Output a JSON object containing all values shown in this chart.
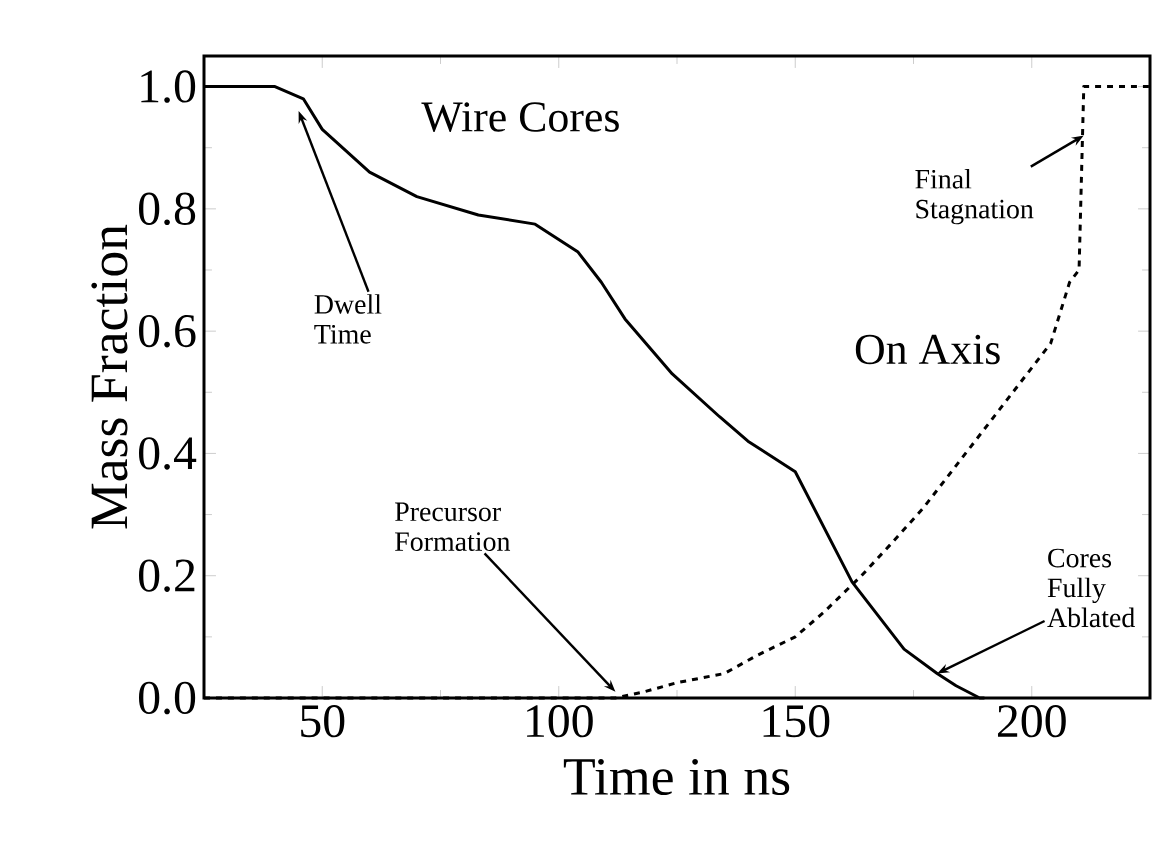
{
  "chart_data": {
    "type": "line",
    "xlabel": "Time in ns",
    "ylabel": "Mass Fraction",
    "xlim": [
      25,
      225
    ],
    "ylim": [
      0,
      1.05
    ],
    "xticks": [
      50,
      100,
      150,
      200
    ],
    "yticks": [
      {
        "value": 0,
        "label": "0.0"
      },
      0.2,
      0.4,
      0.6,
      0.8,
      {
        "value": 1,
        "label": "1.0"
      }
    ],
    "grid": false,
    "legend": false,
    "marker": "none",
    "series": [
      {
        "name": "Wire Cores",
        "color": "#000000",
        "line_style": "solid",
        "x": [
          25,
          40,
          46,
          50,
          60,
          70,
          83,
          95,
          104,
          109,
          114,
          124,
          134,
          140,
          150,
          162,
          173,
          180,
          184,
          189,
          190
        ],
        "values": [
          1.0,
          1.0,
          0.98,
          0.93,
          0.86,
          0.82,
          0.79,
          0.775,
          0.73,
          0.68,
          0.62,
          0.53,
          0.46,
          0.42,
          0.37,
          0.19,
          0.08,
          0.04,
          0.02,
          0.0,
          0.0
        ]
      },
      {
        "name": "On Axis",
        "color": "#000000",
        "line_style": "dashed",
        "x": [
          25,
          112,
          118,
          125,
          135,
          142,
          150,
          156,
          164,
          170,
          177,
          187,
          196,
          204,
          208,
          210,
          211,
          225
        ],
        "values": [
          0.0,
          0.0,
          0.01,
          0.025,
          0.04,
          0.07,
          0.1,
          0.14,
          0.2,
          0.25,
          0.31,
          0.41,
          0.5,
          0.58,
          0.68,
          0.7,
          1.0,
          1.0
        ]
      }
    ],
    "annotations": [
      {
        "text": "Dwell Time",
        "x": 45,
        "y": 0.96
      },
      {
        "text": "Final Stagnation",
        "x": 211,
        "y": 0.92
      },
      {
        "text": "Precursor Formation",
        "x": 112,
        "y": 0.01
      },
      {
        "text": "Cores Fully Ablated",
        "x": 180,
        "y": 0.04
      }
    ]
  }
}
